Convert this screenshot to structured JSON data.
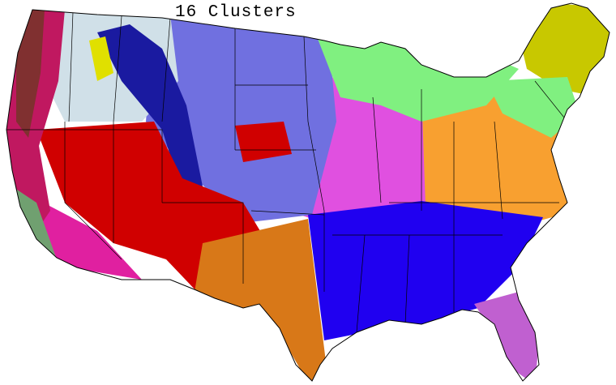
{
  "title": "16 Clusters",
  "cluster_count": 16,
  "colors": {
    "pacific_coast": "#c01860",
    "coast_forest": "#803030",
    "southern_california": "#70a070",
    "northwest_interior": "#d0e0e8",
    "rocky_mountains": "#1a1aa0",
    "mountain_highlights": "#e0e000",
    "northern_plains": "#7070e0",
    "great_basin": "#d00000",
    "southwest_desert": "#e020a0",
    "texas": "#d87818",
    "midwest": "#e050e0",
    "east": "#f8a030",
    "great_lakes": "#80f080",
    "new_england": "#c8c800",
    "southeast": "#2000f0",
    "florida": "#c060d0"
  }
}
